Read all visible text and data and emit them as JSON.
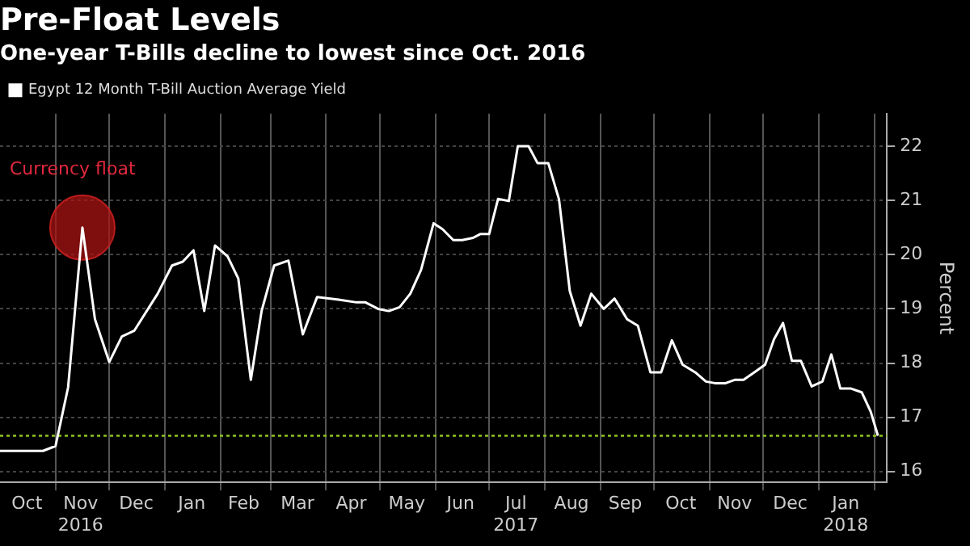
{
  "chart_data": {
    "type": "line",
    "title": "Pre-Float Levels",
    "subtitle": "One-year T-Bills decline to lowest since Oct. 2016",
    "ylabel": "Percent",
    "x": [
      "2016-10-01",
      "2016-10-25",
      "2016-11-01",
      "2016-11-08",
      "2016-11-16",
      "2016-11-23",
      "2016-12-01",
      "2016-12-08",
      "2016-12-15",
      "2016-12-28",
      "2017-01-05",
      "2017-01-11",
      "2017-01-17",
      "2017-01-23",
      "2017-01-29",
      "2017-02-05",
      "2017-02-11",
      "2017-02-18",
      "2017-02-24",
      "2017-03-03",
      "2017-03-11",
      "2017-03-19",
      "2017-03-27",
      "2017-04-08",
      "2017-04-18",
      "2017-04-23",
      "2017-04-30",
      "2017-05-06",
      "2017-05-12",
      "2017-05-18",
      "2017-05-24",
      "2017-05-31",
      "2017-06-05",
      "2017-06-11",
      "2017-06-16",
      "2017-06-22",
      "2017-06-26",
      "2017-07-01",
      "2017-07-06",
      "2017-07-12",
      "2017-07-17",
      "2017-07-23",
      "2017-07-28",
      "2017-08-03",
      "2017-08-09",
      "2017-08-15",
      "2017-08-21",
      "2017-08-27",
      "2017-09-03",
      "2017-09-09",
      "2017-09-16",
      "2017-09-22",
      "2017-09-29",
      "2017-10-05",
      "2017-10-11",
      "2017-10-17",
      "2017-10-24",
      "2017-10-30",
      "2017-11-04",
      "2017-11-10",
      "2017-11-15",
      "2017-11-20",
      "2017-11-26",
      "2017-12-02",
      "2017-12-07",
      "2017-12-12",
      "2017-12-17",
      "2017-12-22",
      "2017-12-28",
      "2018-01-03",
      "2018-01-08",
      "2018-01-13",
      "2018-01-19",
      "2018-01-25",
      "2018-01-30",
      "2018-02-03"
    ],
    "series": [
      {
        "name": "Egypt 12 Month T-Bill Auction Average Yield",
        "color": "#ffffff",
        "values": [
          16.38,
          16.38,
          16.47,
          17.55,
          20.5,
          18.81,
          18.02,
          18.49,
          18.6,
          19.28,
          19.8,
          19.87,
          20.08,
          18.96,
          20.17,
          19.97,
          19.56,
          17.69,
          18.96,
          19.8,
          19.89,
          18.53,
          19.22,
          19.17,
          19.12,
          19.12,
          19.0,
          18.96,
          19.03,
          19.28,
          19.72,
          20.58,
          20.47,
          20.27,
          20.27,
          20.31,
          20.38,
          20.38,
          21.03,
          20.99,
          22.0,
          22.0,
          21.69,
          21.69,
          21.02,
          19.33,
          18.69,
          19.28,
          19.0,
          19.19,
          18.81,
          18.69,
          17.83,
          17.83,
          18.42,
          17.97,
          17.83,
          17.66,
          17.63,
          17.63,
          17.69,
          17.69,
          17.83,
          17.97,
          18.44,
          18.74,
          18.04,
          18.04,
          17.57,
          17.66,
          18.16,
          17.53,
          17.53,
          17.46,
          17.1,
          16.66
        ]
      }
    ],
    "xlim": [
      "2016-10-01",
      "2018-02-08"
    ],
    "xticks": [
      {
        "value": "2016-10-16",
        "label": "Oct"
      },
      {
        "value": "2016-11-01",
        "label": null
      },
      {
        "value": "2016-11-15",
        "label": "Nov\n2016"
      },
      {
        "value": "2016-12-01",
        "label": null
      },
      {
        "value": "2016-12-16",
        "label": "Dec"
      },
      {
        "value": "2017-01-01",
        "label": null
      },
      {
        "value": "2017-01-16",
        "label": "Jan"
      },
      {
        "value": "2017-02-01",
        "label": null
      },
      {
        "value": "2017-02-14",
        "label": "Feb"
      },
      {
        "value": "2017-03-01",
        "label": null
      },
      {
        "value": "2017-03-16",
        "label": "Mar"
      },
      {
        "value": "2017-04-01",
        "label": null
      },
      {
        "value": "2017-04-15",
        "label": "Apr"
      },
      {
        "value": "2017-05-01",
        "label": null
      },
      {
        "value": "2017-05-16",
        "label": "May"
      },
      {
        "value": "2017-06-01",
        "label": null
      },
      {
        "value": "2017-06-15",
        "label": "Jun"
      },
      {
        "value": "2017-07-01",
        "label": null
      },
      {
        "value": "2017-07-16",
        "label": "Jul\n2017"
      },
      {
        "value": "2017-08-01",
        "label": null
      },
      {
        "value": "2017-08-16",
        "label": "Aug"
      },
      {
        "value": "2017-09-01",
        "label": null
      },
      {
        "value": "2017-09-15",
        "label": "Sep"
      },
      {
        "value": "2017-10-01",
        "label": null
      },
      {
        "value": "2017-10-16",
        "label": "Oct"
      },
      {
        "value": "2017-11-01",
        "label": null
      },
      {
        "value": "2017-11-15",
        "label": "Nov"
      },
      {
        "value": "2017-12-01",
        "label": null
      },
      {
        "value": "2017-12-16",
        "label": "Dec"
      },
      {
        "value": "2018-01-01",
        "label": null
      },
      {
        "value": "2018-01-16",
        "label": "Jan\n2018"
      },
      {
        "value": "2018-02-01",
        "label": null
      }
    ],
    "ylim": [
      15.8,
      22.6
    ],
    "yticks": [
      16,
      17,
      18,
      19,
      20,
      21,
      22
    ],
    "ref_lines": [
      {
        "axis": "y",
        "value": 16.66,
        "color": "#8fc31f",
        "line_style": "dotted"
      }
    ],
    "annotations": [
      {
        "text": "Currency float",
        "x": "2016-11-16",
        "y": 20.5
      }
    ],
    "grid": true,
    "legend": "top left",
    "marker": "none",
    "line_style": "solid"
  }
}
